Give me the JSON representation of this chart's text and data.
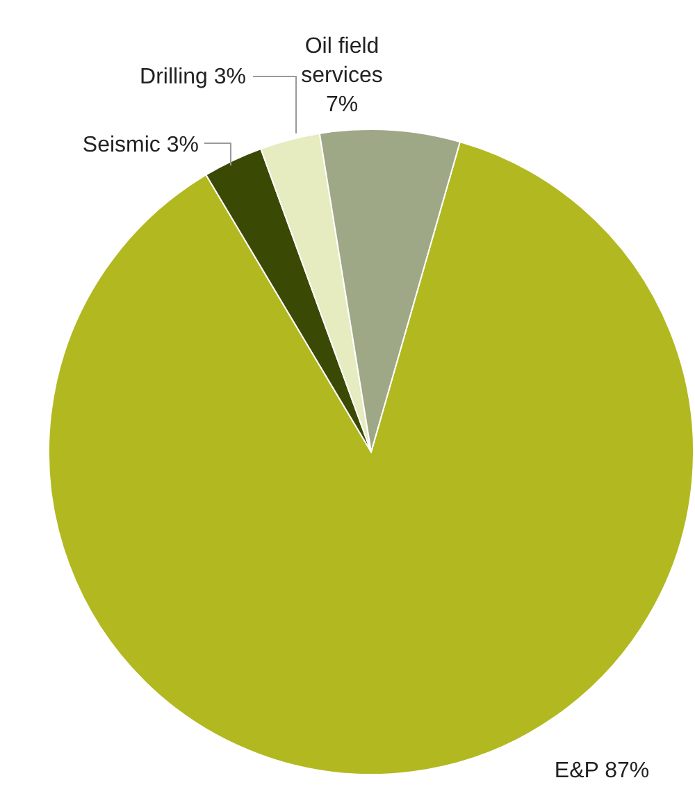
{
  "chart_data": {
    "type": "pie",
    "categories": [
      "E&P",
      "Seismic",
      "Drilling",
      "Oil field services"
    ],
    "values": [
      87,
      3,
      3,
      7
    ],
    "value_labels": [
      "87%",
      "3%",
      "3%",
      "7%"
    ],
    "colors": [
      "#b2b920",
      "#3a4a04",
      "#e6ebc0",
      "#9ea786"
    ]
  }
}
